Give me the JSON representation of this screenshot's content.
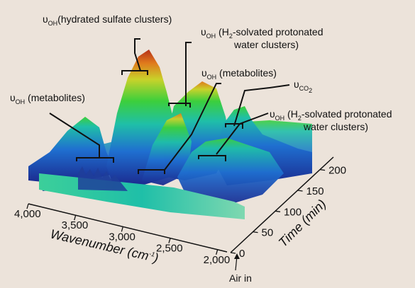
{
  "chart_data": {
    "type": "surface",
    "x_axis": {
      "label": "Wavenumber (cm",
      "label_sup": "-1",
      "label_end": ")",
      "ticks": [
        "4,000",
        "3,500",
        "3,000",
        "2,500",
        "2,000"
      ],
      "range": [
        4000,
        1900
      ]
    },
    "y_axis": {
      "label": "Time (min)",
      "ticks": [
        "0",
        "50",
        "100",
        "150",
        "200"
      ],
      "range": [
        0,
        230
      ]
    },
    "event_marker": {
      "label": "Air in",
      "time": 0
    },
    "annotations": [
      {
        "symbol": "υ",
        "sub": "OH",
        "text": "(hydrated sulfate clusters)",
        "wavenumber": 3400
      },
      {
        "symbol": "υ",
        "sub": "OH",
        "text_line1_pre": " (H",
        "text_line1_sub": "2",
        "text_line1_post": "-solvated protonated",
        "text_line2": "water clusters)",
        "wavenumber": 3300
      },
      {
        "symbol": "υ",
        "sub": "OH",
        "text": " (metabolites)",
        "wavenumber": 3200
      },
      {
        "symbol": "υ",
        "sub": "OH",
        "text": " (metabolites)",
        "wavenumber": 3700
      },
      {
        "symbol": "υ",
        "sub": "CO",
        "sub2": "2",
        "text": "",
        "wavenumber": 2350
      },
      {
        "symbol": "υ",
        "sub": "OH",
        "text_line1_pre": " (H",
        "text_line1_sub": "2",
        "text_line1_post": "-solvated protonated",
        "text_line2": "water clusters)",
        "wavenumber": 2750
      }
    ],
    "colormap": [
      "#1b2a8f",
      "#1f6fd0",
      "#1fbfa8",
      "#3ccf3c",
      "#c8d22a",
      "#e07a1c",
      "#b5301a"
    ]
  }
}
